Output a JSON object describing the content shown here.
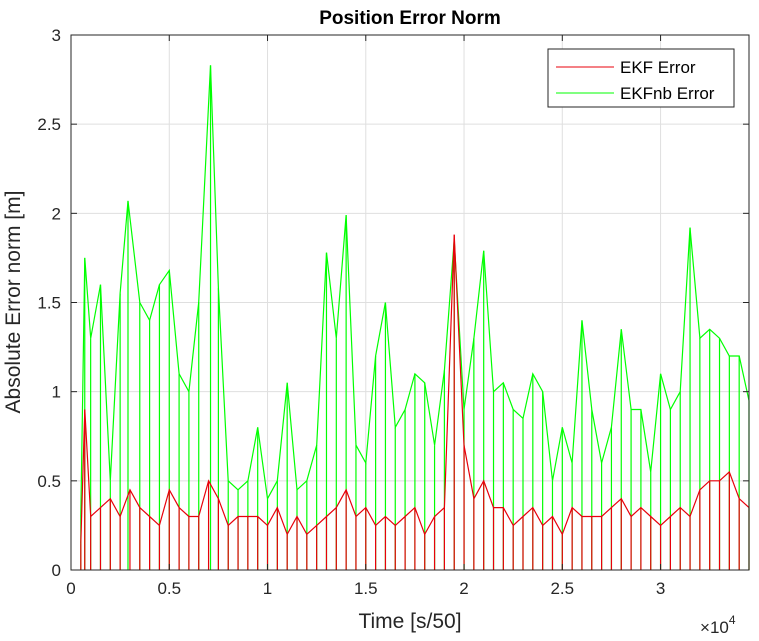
{
  "chart_data": {
    "type": "line",
    "title": "Position Error Norm",
    "xlabel": "Time [s/50]",
    "ylabel": "Absolute Error norm [m]",
    "x_exponent_label": "10",
    "x_exponent_power": "4",
    "x_scale": 10000,
    "xlim": [
      0,
      34500
    ],
    "ylim": [
      0,
      3
    ],
    "xticks": [
      0,
      0.5,
      1,
      1.5,
      2,
      2.5,
      3
    ],
    "xtick_labels": [
      "0",
      "0.5",
      "1",
      "1.5",
      "2",
      "2.5",
      "3"
    ],
    "yticks": [
      0,
      0.5,
      1,
      1.5,
      2,
      2.5,
      3
    ],
    "ytick_labels": [
      "0",
      "0.5",
      "1",
      "1.5",
      "2",
      "2.5",
      "3"
    ],
    "grid": true,
    "legend_position": "top-right",
    "colors": {
      "ekf": "#e8000b",
      "ekfnb": "#00ff00"
    },
    "series": [
      {
        "name": "EKF Error",
        "color": "#e8000b",
        "x": [
          500,
          700,
          1000,
          1500,
          2000,
          2500,
          3000,
          3500,
          4000,
          4500,
          5000,
          5500,
          6000,
          6500,
          7000,
          7500,
          8000,
          8500,
          9000,
          9500,
          10000,
          10500,
          11000,
          11500,
          12000,
          12500,
          13000,
          13500,
          14000,
          14500,
          15000,
          15500,
          16000,
          16500,
          17000,
          17500,
          18000,
          18500,
          19000,
          19500,
          20000,
          20500,
          21000,
          21500,
          22000,
          22500,
          23000,
          23500,
          24000,
          24500,
          25000,
          25500,
          26000,
          26500,
          27000,
          27500,
          28000,
          28500,
          29000,
          29500,
          30000,
          30500,
          31000,
          31500,
          32000,
          32500,
          33000,
          33500,
          34000,
          34500
        ],
        "y": [
          0.15,
          0.9,
          0.3,
          0.35,
          0.4,
          0.3,
          0.45,
          0.35,
          0.3,
          0.25,
          0.45,
          0.35,
          0.3,
          0.3,
          0.5,
          0.4,
          0.25,
          0.3,
          0.3,
          0.3,
          0.25,
          0.35,
          0.2,
          0.3,
          0.2,
          0.25,
          0.3,
          0.35,
          0.45,
          0.3,
          0.35,
          0.25,
          0.3,
          0.25,
          0.3,
          0.35,
          0.2,
          0.3,
          0.35,
          1.88,
          0.7,
          0.4,
          0.5,
          0.35,
          0.35,
          0.25,
          0.3,
          0.35,
          0.25,
          0.3,
          0.2,
          0.35,
          0.3,
          0.3,
          0.3,
          0.35,
          0.4,
          0.3,
          0.35,
          0.3,
          0.25,
          0.3,
          0.35,
          0.3,
          0.45,
          0.5,
          0.5,
          0.55,
          0.4,
          0.35
        ]
      },
      {
        "name": "EKFnb Error",
        "color": "#00ff00",
        "x": [
          500,
          700,
          1000,
          1500,
          2000,
          2500,
          2900,
          3500,
          4000,
          4500,
          5000,
          5500,
          6000,
          6500,
          7100,
          7500,
          8000,
          8500,
          9000,
          9500,
          10000,
          10500,
          11000,
          11500,
          12000,
          12500,
          13000,
          13500,
          14000,
          14500,
          15000,
          15500,
          16000,
          16500,
          17000,
          17500,
          18000,
          18500,
          19000,
          19500,
          20000,
          20500,
          21000,
          21500,
          22000,
          22500,
          23000,
          23500,
          24000,
          24500,
          25000,
          25500,
          26000,
          26500,
          27000,
          27500,
          28000,
          28500,
          29000,
          29500,
          30000,
          30500,
          31000,
          31500,
          32000,
          32500,
          33000,
          33500,
          34000,
          34500
        ],
        "y": [
          0.3,
          1.75,
          1.3,
          1.6,
          0.5,
          1.55,
          2.07,
          1.5,
          1.4,
          1.6,
          1.68,
          1.1,
          1.0,
          1.5,
          2.83,
          1.58,
          0.5,
          0.45,
          0.5,
          0.8,
          0.4,
          0.5,
          1.05,
          0.45,
          0.5,
          0.7,
          1.78,
          1.3,
          1.99,
          0.7,
          0.6,
          1.2,
          1.5,
          0.8,
          0.9,
          1.1,
          1.05,
          0.7,
          1.12,
          1.85,
          0.9,
          1.3,
          1.79,
          1.0,
          1.05,
          0.9,
          0.85,
          1.1,
          1.0,
          0.5,
          0.8,
          0.6,
          1.4,
          0.9,
          0.6,
          0.8,
          1.35,
          0.9,
          0.9,
          0.55,
          1.1,
          0.9,
          1.0,
          1.92,
          1.3,
          1.35,
          1.3,
          1.2,
          1.2,
          0.95
        ]
      }
    ]
  }
}
